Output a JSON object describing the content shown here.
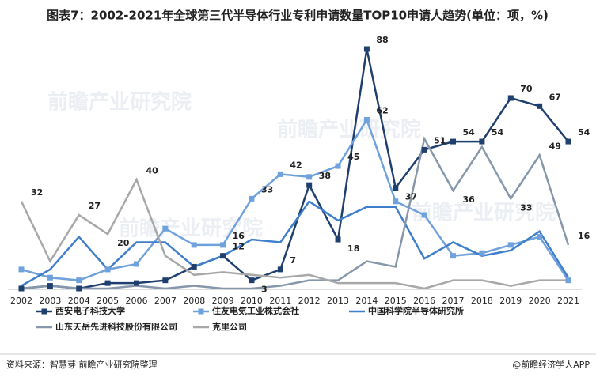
{
  "chart_data": {
    "type": "line",
    "title": "图表7：2002-2021年全球第三代半导体行业专利申请数量TOP10申请人趋势(单位：项，%)",
    "source": "资料来源：智慧芽 前瞻产业研究院整理",
    "brand": "@前瞻经济学人APP",
    "watermark": "前瞻产业研究院",
    "categories": [
      "2002",
      "2003",
      "2004",
      "2005",
      "2006",
      "2007",
      "2008",
      "2009",
      "2010",
      "2011",
      "2012",
      "2013",
      "2014",
      "2015",
      "2016",
      "2017",
      "2018",
      "2019",
      "2020",
      "2021"
    ],
    "series": [
      {
        "name": "西安电子科技大学",
        "color": "#1f3f6e",
        "markers": true,
        "values": [
          0,
          1,
          0,
          2,
          2,
          3,
          8,
          12,
          3,
          7,
          38,
          18,
          88,
          37,
          51,
          54,
          54,
          70,
          67,
          54
        ],
        "value_labels": [
          null,
          null,
          null,
          null,
          null,
          null,
          null,
          "12",
          "3",
          "7",
          "38",
          "18",
          "88",
          "37",
          "51",
          "54",
          "54",
          "70",
          "67",
          "54"
        ]
      },
      {
        "name": "住友电気工业株式会社",
        "color": "#6fa1dc",
        "markers": true,
        "values": [
          7,
          4,
          3,
          7,
          9,
          22,
          16,
          16,
          33,
          42,
          41,
          45,
          62,
          32,
          27,
          12,
          13,
          16,
          19,
          3
        ],
        "value_labels": [
          null,
          null,
          null,
          null,
          null,
          null,
          null,
          "16",
          "33",
          "42",
          null,
          "45",
          "62",
          null,
          null,
          null,
          null,
          null,
          null,
          null
        ]
      },
      {
        "name": "中国科学院半导体研究所",
        "color": "#3f7fcc",
        "markers": false,
        "values": [
          1,
          7,
          19,
          7,
          17,
          17,
          8,
          12,
          18,
          17,
          32,
          25,
          30,
          30,
          11,
          17,
          12,
          14,
          21,
          4
        ]
      },
      {
        "name": "山东天岳先进科技股份有限公司",
        "color": "#8797ab",
        "markers": false,
        "values": [
          0,
          1,
          0,
          0,
          1,
          0,
          1,
          0,
          0,
          1,
          3,
          3,
          10,
          8,
          55,
          36,
          52,
          33,
          49,
          16
        ],
        "value_labels": [
          null,
          null,
          null,
          null,
          null,
          null,
          null,
          null,
          null,
          null,
          null,
          null,
          null,
          null,
          null,
          "36",
          null,
          "33",
          "49",
          "16"
        ]
      },
      {
        "name": "克里公司",
        "color": "#a8a8a8",
        "markers": false,
        "values": [
          32,
          10,
          27,
          20,
          40,
          12,
          5,
          6,
          5,
          4,
          5,
          2,
          2,
          2,
          0,
          3,
          3,
          1,
          3,
          3
        ],
        "value_labels": [
          "32",
          null,
          "27",
          "20",
          "40",
          null,
          null,
          null,
          null,
          null,
          null,
          null,
          null,
          null,
          null,
          null,
          null,
          null,
          null,
          null
        ]
      }
    ]
  }
}
